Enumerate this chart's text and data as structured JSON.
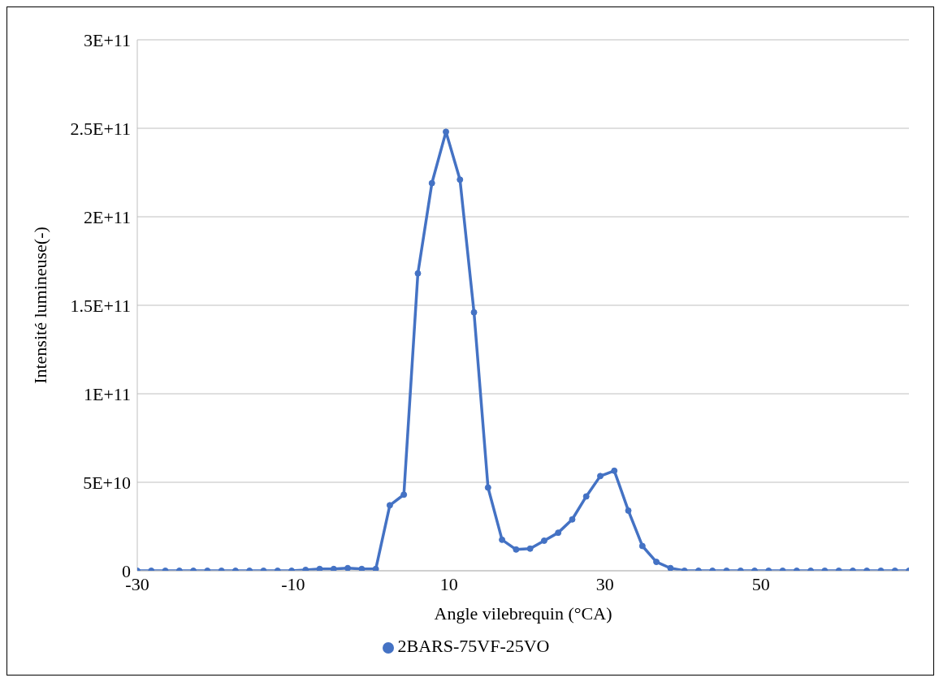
{
  "chart_data": {
    "type": "line",
    "xlabel": "Angle vilebrequin (°CA)",
    "ylabel": "Intensité lumineuse(-)",
    "x": [
      -30,
      -28.2,
      -26.4,
      -24.6,
      -22.8,
      -21,
      -19.2,
      -17.4,
      -15.6,
      -13.8,
      -12,
      -10.2,
      -8.4,
      -6.6,
      -4.8,
      -3,
      -1.2,
      0.6,
      2.4,
      4.2,
      6,
      7.8,
      9.6,
      11.4,
      13.2,
      15,
      16.8,
      18.6,
      20.4,
      22.2,
      24,
      25.8,
      27.6,
      29.4,
      31.2,
      33,
      34.8,
      36.6,
      38.4,
      40.2,
      42,
      43.8,
      45.6,
      47.4,
      49.2,
      51,
      52.8,
      54.6,
      56.4,
      58.2,
      60,
      61.8,
      63.6,
      65.4,
      67.2,
      69
    ],
    "series": [
      {
        "name": "2BARS-75VF-25VO",
        "color": "#4472c4",
        "values": [
          0,
          0,
          0,
          0,
          0,
          0,
          0,
          0,
          0,
          0,
          0,
          0,
          500000000,
          1000000000,
          1000000000,
          1500000000,
          1000000000,
          1000000000,
          37000000000,
          43000000000,
          168000000000,
          219000000000,
          248000000000,
          221000000000,
          146000000000,
          47000000000,
          17500000000,
          12000000000,
          12500000000,
          17000000000,
          21500000000,
          29000000000,
          42000000000,
          53500000000,
          56500000000,
          34000000000,
          14000000000,
          5000000000,
          1500000000,
          0,
          0,
          0,
          0,
          0,
          0,
          0,
          0,
          0,
          0,
          0,
          0,
          0,
          0,
          0,
          0,
          0
        ]
      }
    ],
    "xlim": [
      -30,
      69
    ],
    "xticks": [
      -30,
      -10,
      10,
      30,
      50
    ],
    "ylim": [
      0,
      300000000000
    ],
    "yticks": [
      {
        "value": 0,
        "label": "0"
      },
      {
        "value": 50000000000,
        "label": "5E+10"
      },
      {
        "value": 100000000000,
        "label": "1E+11"
      },
      {
        "value": 150000000000,
        "label": "1.5E+11"
      },
      {
        "value": 200000000000,
        "label": "2E+11"
      },
      {
        "value": 250000000000,
        "label": "2.5E+11"
      },
      {
        "value": 300000000000,
        "label": "3E+11"
      }
    ],
    "grid": "y",
    "legend": "bottom",
    "marker": "circle",
    "line_style": "solid"
  }
}
